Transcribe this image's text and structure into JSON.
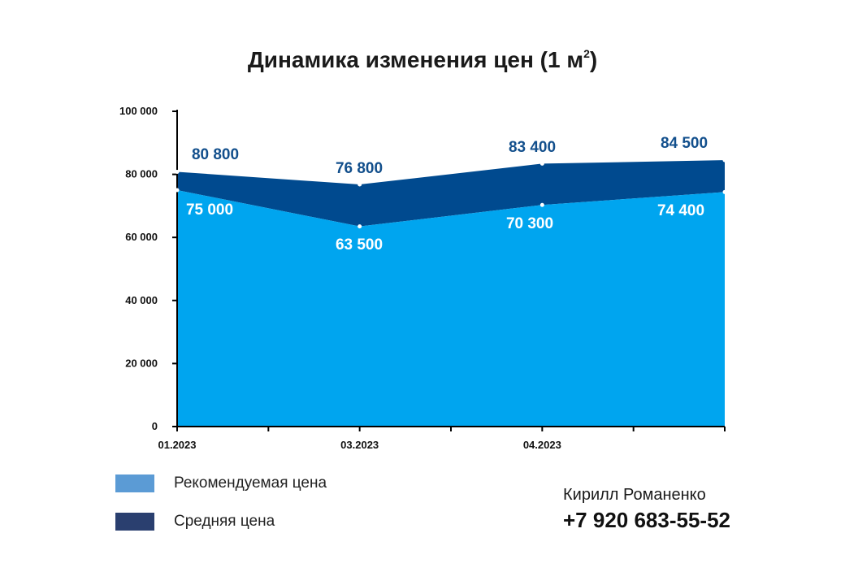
{
  "chart_data": {
    "type": "area",
    "title": "Динамика изменения цен (1 м",
    "title_sup": "2",
    "title_suffix": ")",
    "x_ticks": [
      "01.2023",
      "03.2023",
      "04.2023"
    ],
    "y_ticks": [
      "0",
      "20 000",
      "40 000",
      "60 000",
      "80 000",
      "100 000"
    ],
    "ylim": [
      0,
      100000
    ],
    "series": [
      {
        "name": "Средняя цена",
        "values": [
          80800,
          76800,
          83400,
          84500
        ],
        "labels": [
          "80 800",
          "76 800",
          "83 400",
          "84 500"
        ],
        "color": "#004a8f"
      },
      {
        "name": "Рекомендуемая цена",
        "values": [
          75000,
          63500,
          70300,
          74400
        ],
        "labels": [
          "75 000",
          "63 500",
          "70 300",
          "74 400"
        ],
        "color": "#00a5ef"
      }
    ],
    "legend": [
      {
        "label": "Рекомендуемая цена",
        "color": "#5b9bd5"
      },
      {
        "label": "Средняя цена",
        "color": "#2a3f6f"
      }
    ],
    "legend_position": "bottom-left",
    "grid": false
  },
  "contact": {
    "name": "Кирилл Романенко",
    "phone": "+7 920 683-55-52"
  }
}
